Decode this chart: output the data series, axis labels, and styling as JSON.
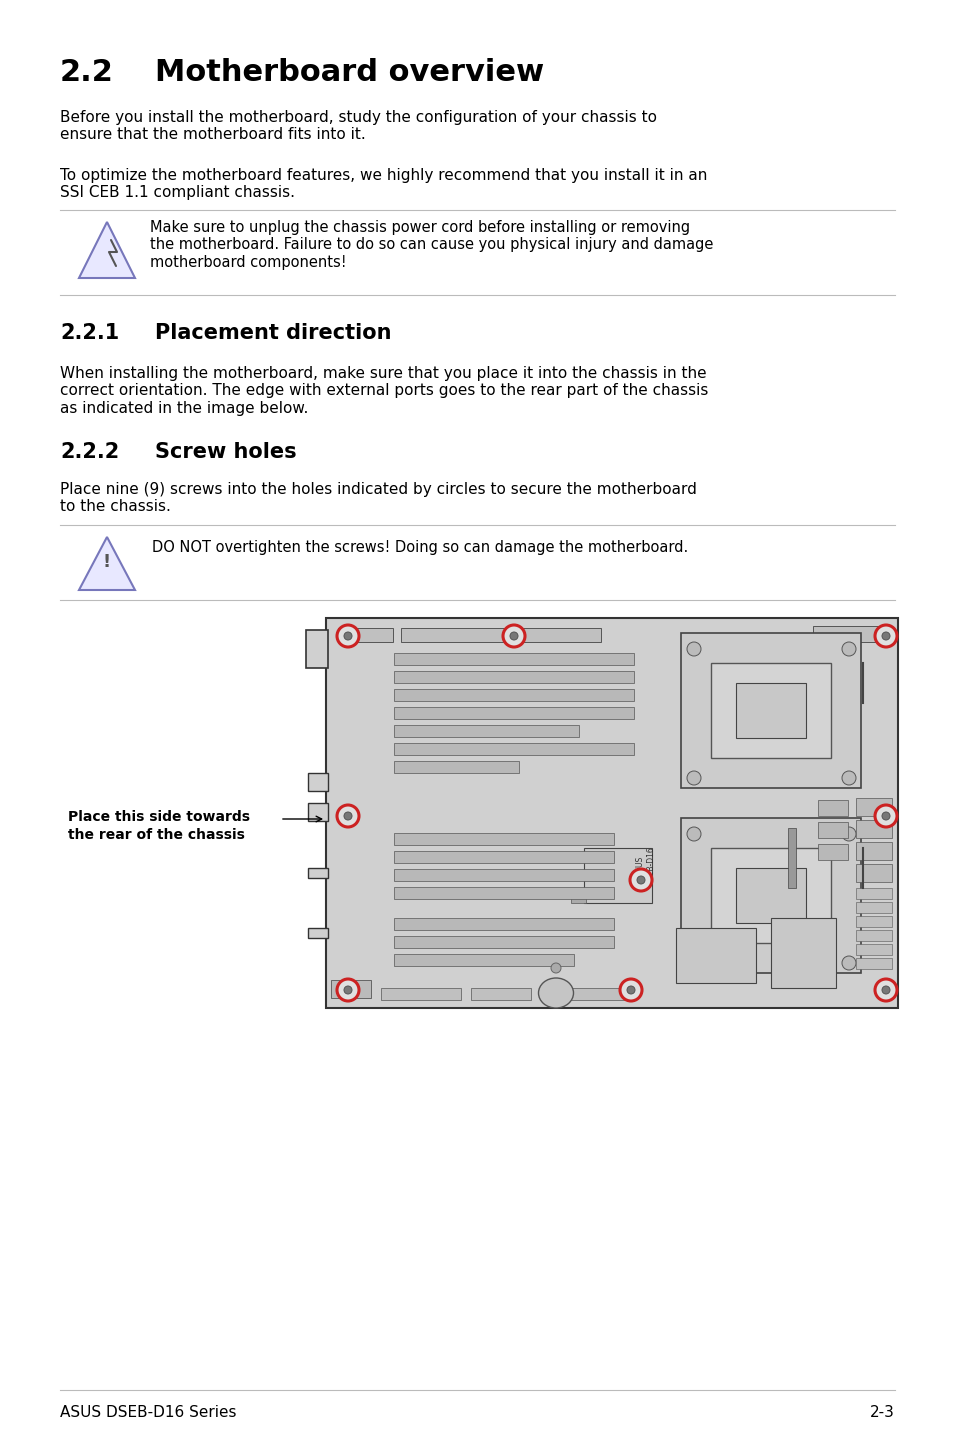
{
  "title_num": "2.2",
  "title_text": "Motherboard overview",
  "para1": "Before you install the motherboard, study the configuration of your chassis to\nensure that the motherboard fits into it.",
  "para2": "To optimize the motherboard features, we highly recommend that you install it in an\nSSI CEB 1.1 compliant chassis.",
  "warn1": "Make sure to unplug the chassis power cord before installing or removing\nthe motherboard. Failure to do so can cause you physical injury and damage\nmotherboard components!",
  "sec221_num": "2.2.1",
  "sec221_title": "Placement direction",
  "para3": "When installing the motherboard, make sure that you place it into the chassis in the\ncorrect orientation. The edge with external ports goes to the rear part of the chassis\nas indicated in the image below.",
  "sec222_num": "2.2.2",
  "sec222_title": "Screw holes",
  "para4": "Place nine (9) screws into the holes indicated by circles to secure the motherboard\nto the chassis.",
  "warn2": "DO NOT overtighten the screws! Doing so can damage the motherboard.",
  "label_l1": "Place this side towards",
  "label_l2": "the rear of the chassis",
  "footer_l": "ASUS DSEB-D16 Series",
  "footer_r": "2-3",
  "bg": "#ffffff",
  "line_col": "#bbbbbb",
  "warn_tri_fill": "#e8e8ff",
  "warn_tri_edge": "#7777bb",
  "board_bg": "#d0d0d0",
  "board_edge": "#333333",
  "screw_red": "#cc2222",
  "slot_fill": "#b8b8b8",
  "slot_edge": "#555555"
}
